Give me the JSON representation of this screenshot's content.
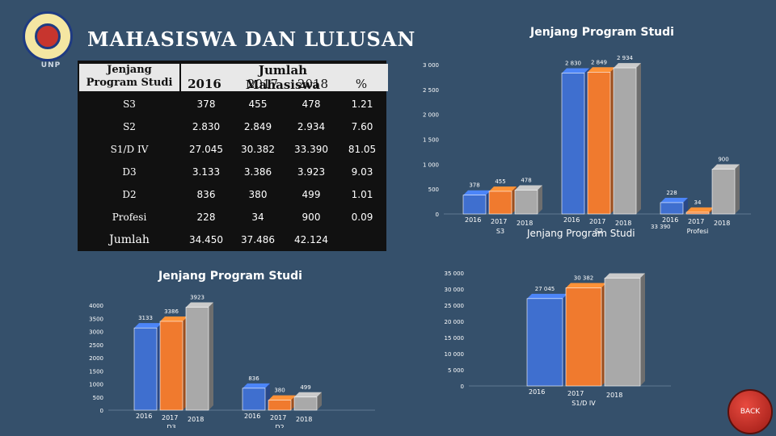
{
  "logo": {
    "text": "UNP"
  },
  "page_title": "MAHASISWA DAN LULUSAN",
  "table": {
    "header": {
      "col1": "Jenjang Program Studi",
      "group": "Jumlah Mahasiswa",
      "y2016": "2016",
      "y2017": "2017",
      "y2018": "2018",
      "pct": "%"
    },
    "rows": [
      {
        "label": "S3",
        "v2016": "378",
        "v2017": "455",
        "v2018": "478",
        "pct": "1.21"
      },
      {
        "label": "S2",
        "v2016": "2.830",
        "v2017": "2.849",
        "v2018": "2.934",
        "pct": "7.60"
      },
      {
        "label": "S1/D IV",
        "v2016": "27.045",
        "v2017": "30.382",
        "v2018": "33.390",
        "pct": "81.05"
      },
      {
        "label": "D3",
        "v2016": "3.133",
        "v2017": "3.386",
        "v2018": "3.923",
        "pct": "9.03"
      },
      {
        "label": "D2",
        "v2016": "836",
        "v2017": "380",
        "v2018": "499",
        "pct": "1.01"
      },
      {
        "label": "Profesi",
        "v2016": "228",
        "v2017": "34",
        "v2018": "900",
        "pct": "0.09"
      },
      {
        "label": "Jumlah",
        "v2016": "34.450",
        "v2017": "37.486",
        "v2018": "42.124",
        "pct": ""
      }
    ]
  },
  "colors": {
    "y2016": "#3f6fcf",
    "y2017": "#f07a2e",
    "y2018": "#a9a9a9"
  },
  "chart_data": [
    {
      "type": "bar",
      "title": "Jenjang Program Studi",
      "xlabel": "Jenjang Program Studi",
      "categories": [
        "S3",
        "S2",
        "Profesi"
      ],
      "series": [
        {
          "name": "2016",
          "values": [
            378,
            2830,
            228
          ]
        },
        {
          "name": "2017",
          "values": [
            455,
            2849,
            34
          ]
        },
        {
          "name": "2018",
          "values": [
            478,
            2934,
            900
          ]
        }
      ],
      "ylim": [
        0,
        3000
      ],
      "yticks": [
        "0",
        "500",
        "1 000",
        "1 500",
        "2 000",
        "2 500",
        "3 000"
      ],
      "data_labels": [
        "378",
        "455",
        "478",
        "2 830",
        "2 849",
        "2 934",
        "228",
        "34",
        "900"
      ],
      "extra_label": "33 390",
      "grid": false
    },
    {
      "type": "bar",
      "title": "Jenjang Program Studi",
      "categories": [
        "D3",
        "D2"
      ],
      "series": [
        {
          "name": "2016",
          "values": [
            3133,
            836
          ]
        },
        {
          "name": "2017",
          "values": [
            3386,
            380
          ]
        },
        {
          "name": "2018",
          "values": [
            3923,
            499
          ]
        }
      ],
      "ylim": [
        0,
        4000
      ],
      "yticks": [
        "0",
        "500",
        "1000",
        "1500",
        "2000",
        "2500",
        "3000",
        "3500",
        "4000"
      ],
      "data_labels": [
        "3133",
        "3386",
        "3923",
        "836",
        "380",
        "499"
      ],
      "grid": false
    },
    {
      "type": "bar",
      "categories": [
        "S1/D IV"
      ],
      "series": [
        {
          "name": "2016",
          "values": [
            27045
          ]
        },
        {
          "name": "2017",
          "values": [
            30382
          ]
        },
        {
          "name": "2018",
          "values": [
            33390
          ]
        }
      ],
      "ylim": [
        0,
        35000
      ],
      "yticks": [
        "0",
        "5 000",
        "10 000",
        "15 000",
        "20 000",
        "25 000",
        "30 000",
        "35 000"
      ],
      "data_labels": [
        "27 045",
        "30 382"
      ],
      "grid": false
    }
  ],
  "back_button": {
    "label": "BACK"
  }
}
